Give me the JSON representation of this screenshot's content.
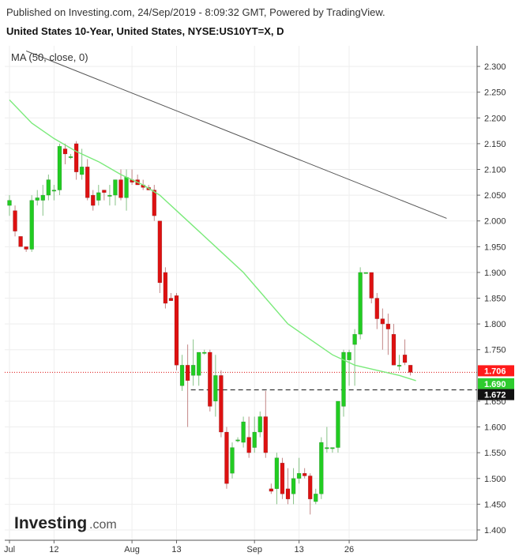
{
  "header": {
    "published": "Published on Investing.com, 24/Sep/2019 - 8:09:32 GMT, Powered by TradingView.",
    "title": "United States 10-Year, United States, NYSE:US10YT=X, D"
  },
  "indicator_label": "MA (50, close, 0)",
  "logo": {
    "main": "Investing",
    "suffix": ".com"
  },
  "colors": {
    "up": "#22cc22",
    "down": "#dd1111",
    "ma": "#7bea7b",
    "trendline": "#555555",
    "price_tag": "#ff1a1a",
    "ma_tag": "#2ecc2e",
    "support_tag": "#111111",
    "grid": "#eeeeee"
  },
  "chart_data": {
    "type": "candlestick",
    "title": "United States 10-Year, United States, NYSE:US10YT=X, D",
    "yaxis_position": "right",
    "ylim": [
      1.38,
      2.34
    ],
    "y_ticks": [
      "2.300",
      "2.250",
      "2.200",
      "2.150",
      "2.100",
      "2.050",
      "2.000",
      "1.950",
      "1.900",
      "1.850",
      "1.800",
      "1.750",
      "1.650",
      "1.600",
      "1.550",
      "1.500",
      "1.450",
      "1.400"
    ],
    "x_ticks": [
      {
        "label": "Jul",
        "date": "2019-07-01"
      },
      {
        "label": "12",
        "date": "2019-07-12"
      },
      {
        "label": "Aug",
        "date": "2019-08-01"
      },
      {
        "label": "13",
        "date": "2019-08-13"
      },
      {
        "label": "Sep",
        "date": "2019-09-03"
      },
      {
        "label": "13",
        "date": "2019-09-13"
      },
      {
        "label": "26",
        "date": "2019-09-26"
      }
    ],
    "grid": true,
    "candles": [
      {
        "date": "2019-07-01",
        "open": 2.03,
        "high": 2.05,
        "low": 2.01,
        "close": 2.04
      },
      {
        "date": "2019-07-02",
        "open": 2.02,
        "high": 2.03,
        "low": 1.97,
        "close": 1.98
      },
      {
        "date": "2019-07-03",
        "open": 1.97,
        "high": 1.97,
        "low": 1.95,
        "close": 1.95
      },
      {
        "date": "2019-07-05",
        "open": 1.95,
        "high": 1.95,
        "low": 1.94,
        "close": 1.945
      },
      {
        "date": "2019-07-08",
        "open": 1.945,
        "high": 2.05,
        "low": 1.94,
        "close": 2.04
      },
      {
        "date": "2019-07-09",
        "open": 2.04,
        "high": 2.06,
        "low": 2.03,
        "close": 2.045
      },
      {
        "date": "2019-07-10",
        "open": 2.04,
        "high": 2.07,
        "low": 2.01,
        "close": 2.05
      },
      {
        "date": "2019-07-11",
        "open": 2.05,
        "high": 2.09,
        "low": 2.04,
        "close": 2.08
      },
      {
        "date": "2019-07-12",
        "open": 2.06,
        "high": 2.07,
        "low": 2.04,
        "close": 2.06
      },
      {
        "date": "2019-07-15",
        "open": 2.06,
        "high": 2.15,
        "low": 2.05,
        "close": 2.145
      },
      {
        "date": "2019-07-16",
        "open": 2.14,
        "high": 2.15,
        "low": 2.11,
        "close": 2.13
      },
      {
        "date": "2019-07-17",
        "open": 2.125,
        "high": 2.13,
        "low": 2.12,
        "close": 2.125
      },
      {
        "date": "2019-07-18",
        "open": 2.15,
        "high": 2.155,
        "low": 2.08,
        "close": 2.095
      },
      {
        "date": "2019-07-19",
        "open": 2.09,
        "high": 2.14,
        "low": 2.08,
        "close": 2.105
      },
      {
        "date": "2019-07-22",
        "open": 2.105,
        "high": 2.12,
        "low": 2.04,
        "close": 2.045
      },
      {
        "date": "2019-07-23",
        "open": 2.05,
        "high": 2.06,
        "low": 2.02,
        "close": 2.03
      },
      {
        "date": "2019-07-24",
        "open": 2.04,
        "high": 2.07,
        "low": 2.03,
        "close": 2.055
      },
      {
        "date": "2019-07-25",
        "open": 2.06,
        "high": 2.06,
        "low": 2.04,
        "close": 2.055
      },
      {
        "date": "2019-07-26",
        "open": 2.05,
        "high": 2.07,
        "low": 2.03,
        "close": 2.05
      },
      {
        "date": "2019-07-29",
        "open": 2.05,
        "high": 2.08,
        "low": 2.03,
        "close": 2.08
      },
      {
        "date": "2019-07-30",
        "open": 2.08,
        "high": 2.1,
        "low": 2.04,
        "close": 2.045
      },
      {
        "date": "2019-07-31",
        "open": 2.045,
        "high": 2.1,
        "low": 2.02,
        "close": 2.085
      },
      {
        "date": "2019-08-01",
        "open": 2.08,
        "high": 2.1,
        "low": 2.07,
        "close": 2.075
      },
      {
        "date": "2019-08-02",
        "open": 2.08,
        "high": 2.09,
        "low": 2.07,
        "close": 2.07
      },
      {
        "date": "2019-08-05",
        "open": 2.07,
        "high": 2.08,
        "low": 2.06,
        "close": 2.065
      },
      {
        "date": "2019-08-06",
        "open": 2.065,
        "high": 2.07,
        "low": 2.06,
        "close": 2.06
      },
      {
        "date": "2019-08-07",
        "open": 2.06,
        "high": 2.07,
        "low": 2.0,
        "close": 2.01
      },
      {
        "date": "2019-08-08",
        "open": 2.0,
        "high": 2.0,
        "low": 1.86,
        "close": 1.88
      },
      {
        "date": "2019-08-09",
        "open": 1.9,
        "high": 1.91,
        "low": 1.83,
        "close": 1.84
      },
      {
        "date": "2019-08-12",
        "open": 1.85,
        "high": 1.86,
        "low": 1.845,
        "close": 1.845
      },
      {
        "date": "2019-08-13",
        "open": 1.855,
        "high": 1.86,
        "low": 1.71,
        "close": 1.72
      },
      {
        "date": "2019-08-14",
        "open": 1.68,
        "high": 1.74,
        "low": 1.67,
        "close": 1.72
      },
      {
        "date": "2019-08-15",
        "open": 1.72,
        "high": 1.76,
        "low": 1.6,
        "close": 1.69
      },
      {
        "date": "2019-08-16",
        "open": 1.7,
        "high": 1.77,
        "low": 1.68,
        "close": 1.72
      },
      {
        "date": "2019-08-19",
        "open": 1.7,
        "high": 1.74,
        "low": 1.68,
        "close": 1.745
      },
      {
        "date": "2019-08-20",
        "open": 1.745,
        "high": 1.75,
        "low": 1.74,
        "close": 1.745
      },
      {
        "date": "2019-08-21",
        "open": 1.745,
        "high": 1.75,
        "low": 1.63,
        "close": 1.64
      },
      {
        "date": "2019-08-22",
        "open": 1.65,
        "high": 1.74,
        "low": 1.62,
        "close": 1.7
      },
      {
        "date": "2019-08-23",
        "open": 1.7,
        "high": 1.71,
        "low": 1.58,
        "close": 1.59
      },
      {
        "date": "2019-08-26",
        "open": 1.59,
        "high": 1.6,
        "low": 1.48,
        "close": 1.49
      },
      {
        "date": "2019-08-27",
        "open": 1.51,
        "high": 1.57,
        "low": 1.5,
        "close": 1.56
      },
      {
        "date": "2019-08-28",
        "open": 1.575,
        "high": 1.58,
        "low": 1.57,
        "close": 1.575
      },
      {
        "date": "2019-08-29",
        "open": 1.57,
        "high": 1.62,
        "low": 1.56,
        "close": 1.61
      },
      {
        "date": "2019-08-30",
        "open": 1.58,
        "high": 1.62,
        "low": 1.54,
        "close": 1.55
      },
      {
        "date": "2019-09-03",
        "open": 1.56,
        "high": 1.62,
        "low": 1.55,
        "close": 1.59
      },
      {
        "date": "2019-09-04",
        "open": 1.59,
        "high": 1.63,
        "low": 1.58,
        "close": 1.62
      },
      {
        "date": "2019-09-05",
        "open": 1.62,
        "high": 1.67,
        "low": 1.54,
        "close": 1.55
      },
      {
        "date": "2019-09-06",
        "open": 1.48,
        "high": 1.49,
        "low": 1.47,
        "close": 1.475
      },
      {
        "date": "2019-09-09",
        "open": 1.48,
        "high": 1.55,
        "low": 1.45,
        "close": 1.54
      },
      {
        "date": "2019-09-10",
        "open": 1.53,
        "high": 1.54,
        "low": 1.46,
        "close": 1.47
      },
      {
        "date": "2019-09-11",
        "open": 1.48,
        "high": 1.52,
        "low": 1.45,
        "close": 1.46
      },
      {
        "date": "2019-09-12",
        "open": 1.47,
        "high": 1.52,
        "low": 1.45,
        "close": 1.5
      },
      {
        "date": "2019-09-13",
        "open": 1.5,
        "high": 1.54,
        "low": 1.49,
        "close": 1.51
      },
      {
        "date": "2019-09-16",
        "open": 1.51,
        "high": 1.52,
        "low": 1.5,
        "close": 1.505
      },
      {
        "date": "2019-09-17",
        "open": 1.505,
        "high": 1.51,
        "low": 1.43,
        "close": 1.46
      },
      {
        "date": "2019-09-18",
        "open": 1.455,
        "high": 1.48,
        "low": 1.45,
        "close": 1.47
      },
      {
        "date": "2019-09-19",
        "open": 1.47,
        "high": 1.58,
        "low": 1.46,
        "close": 1.57
      },
      {
        "date": "2019-09-20",
        "open": 1.56,
        "high": 1.6,
        "low": 1.55,
        "close": 1.56
      },
      {
        "date": "2019-09-23",
        "open": 1.56,
        "high": 1.56,
        "low": 1.55,
        "close": 1.56
      },
      {
        "date": "2019-09-24",
        "open": 1.56,
        "high": 1.65,
        "low": 1.55,
        "close": 1.65
      },
      {
        "date": "2019-09-25",
        "open": 1.64,
        "high": 1.75,
        "low": 1.62,
        "close": 1.745
      },
      {
        "date": "2019-09-26",
        "open": 1.73,
        "high": 1.75,
        "low": 1.68,
        "close": 1.745
      },
      {
        "date": "2019-09-27",
        "open": 1.76,
        "high": 1.79,
        "low": 1.68,
        "close": 1.78
      },
      {
        "date": "2019-09-30",
        "open": 1.78,
        "high": 1.91,
        "low": 1.77,
        "close": 1.9
      },
      {
        "date": "2019-10-01",
        "open": 1.9,
        "high": 1.9,
        "low": 1.9,
        "close": 1.9
      },
      {
        "date": "2019-10-02",
        "open": 1.9,
        "high": 1.9,
        "low": 1.84,
        "close": 1.85
      },
      {
        "date": "2019-10-03",
        "open": 1.85,
        "high": 1.86,
        "low": 1.79,
        "close": 1.81
      },
      {
        "date": "2019-10-04",
        "open": 1.81,
        "high": 1.83,
        "low": 1.75,
        "close": 1.8
      },
      {
        "date": "2019-10-07",
        "open": 1.8,
        "high": 1.82,
        "low": 1.74,
        "close": 1.79
      },
      {
        "date": "2019-10-08",
        "open": 1.78,
        "high": 1.8,
        "low": 1.72,
        "close": 1.72
      },
      {
        "date": "2019-10-09",
        "open": 1.72,
        "high": 1.74,
        "low": 1.71,
        "close": 1.72
      },
      {
        "date": "2019-10-10",
        "open": 1.74,
        "high": 1.77,
        "low": 1.72,
        "close": 1.725
      },
      {
        "date": "2019-10-11",
        "open": 1.72,
        "high": 1.72,
        "low": 1.7,
        "close": 1.706
      }
    ],
    "moving_average": {
      "name": "MA (50, close, 0)",
      "points": [
        {
          "i": 0,
          "v": 2.235
        },
        {
          "i": 4,
          "v": 2.19
        },
        {
          "i": 8,
          "v": 2.16
        },
        {
          "i": 12,
          "v": 2.135
        },
        {
          "i": 16,
          "v": 2.115
        },
        {
          "i": 20,
          "v": 2.09
        },
        {
          "i": 24,
          "v": 2.07
        },
        {
          "i": 27,
          "v": 2.05
        },
        {
          "i": 30,
          "v": 2.02
        },
        {
          "i": 34,
          "v": 1.98
        },
        {
          "i": 38,
          "v": 1.94
        },
        {
          "i": 42,
          "v": 1.9
        },
        {
          "i": 46,
          "v": 1.85
        },
        {
          "i": 50,
          "v": 1.8
        },
        {
          "i": 54,
          "v": 1.77
        },
        {
          "i": 58,
          "v": 1.74
        },
        {
          "i": 62,
          "v": 1.72
        },
        {
          "i": 66,
          "v": 1.71
        },
        {
          "i": 70,
          "v": 1.7
        },
        {
          "i": 73,
          "v": 1.69
        }
      ]
    },
    "trendline": {
      "from": {
        "i": 3,
        "v": 2.33
      },
      "to": {
        "i": 78.5,
        "v": 2.005
      }
    },
    "support_line": {
      "value": 1.672,
      "from_i": 33
    },
    "current_price_line": {
      "value": 1.706
    },
    "price_tags": [
      {
        "label": "1.706",
        "value": 1.706,
        "role": "price"
      },
      {
        "label": "1.690",
        "value": 1.69,
        "role": "ma"
      },
      {
        "label": "1.672",
        "value": 1.672,
        "role": "support"
      }
    ]
  }
}
